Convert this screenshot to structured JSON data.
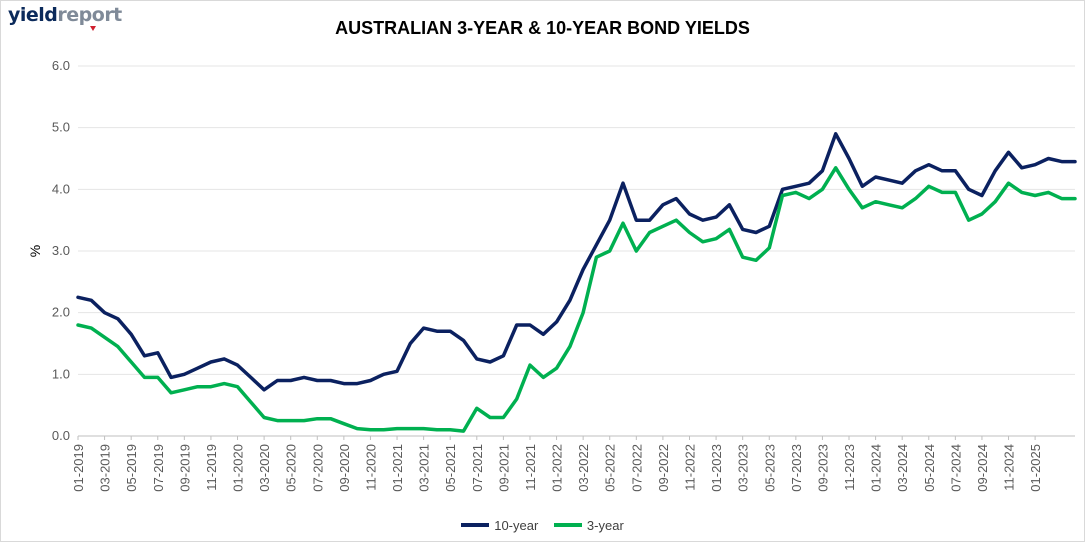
{
  "header": {
    "logo_part1": "yield",
    "logo_part2": "report"
  },
  "chart_data": {
    "type": "line",
    "title": "AUSTRALIAN 3-YEAR & 10-YEAR BOND YIELDS",
    "xlabel": "",
    "ylabel": "%",
    "ylim": [
      0,
      6
    ],
    "yticks": [
      "0.0",
      "1.0",
      "2.0",
      "3.0",
      "4.0",
      "5.0",
      "6.0"
    ],
    "xlim": [
      "2019-01",
      "2025-04"
    ],
    "xticks": [
      "01-2019",
      "03-2019",
      "05-2019",
      "07-2019",
      "09-2019",
      "11-2019",
      "01-2020",
      "03-2020",
      "05-2020",
      "07-2020",
      "09-2020",
      "11-2020",
      "01-2021",
      "03-2021",
      "05-2021",
      "07-2021",
      "09-2021",
      "11-2021",
      "01-2022",
      "03-2022",
      "05-2022",
      "07-2022",
      "09-2022",
      "11-2022",
      "01-2023",
      "03-2023",
      "05-2023",
      "07-2023",
      "09-2023",
      "11-2023",
      "01-2024",
      "03-2024",
      "05-2024",
      "07-2024",
      "09-2024",
      "11-2024",
      "01-2025"
    ],
    "grid": "horizontal",
    "legend_position": "bottom",
    "series": [
      {
        "name": "10-year",
        "color": "#0b2160",
        "x": [
          "2019-01",
          "2019-02",
          "2019-03",
          "2019-04",
          "2019-05",
          "2019-06",
          "2019-07",
          "2019-08",
          "2019-09",
          "2019-10",
          "2019-11",
          "2019-12",
          "2020-01",
          "2020-02",
          "2020-03",
          "2020-04",
          "2020-05",
          "2020-06",
          "2020-07",
          "2020-08",
          "2020-09",
          "2020-10",
          "2020-11",
          "2020-12",
          "2021-01",
          "2021-02",
          "2021-03",
          "2021-04",
          "2021-05",
          "2021-06",
          "2021-07",
          "2021-08",
          "2021-09",
          "2021-10",
          "2021-11",
          "2021-12",
          "2022-01",
          "2022-02",
          "2022-03",
          "2022-04",
          "2022-05",
          "2022-06",
          "2022-07",
          "2022-08",
          "2022-09",
          "2022-10",
          "2022-11",
          "2022-12",
          "2023-01",
          "2023-02",
          "2023-03",
          "2023-04",
          "2023-05",
          "2023-06",
          "2023-07",
          "2023-08",
          "2023-09",
          "2023-10",
          "2023-11",
          "2023-12",
          "2024-01",
          "2024-02",
          "2024-03",
          "2024-04",
          "2024-05",
          "2024-06",
          "2024-07",
          "2024-08",
          "2024-09",
          "2024-10",
          "2024-11",
          "2024-12",
          "2025-01",
          "2025-02",
          "2025-03",
          "2025-04"
        ],
        "values": [
          2.25,
          2.2,
          2.0,
          1.9,
          1.65,
          1.3,
          1.35,
          0.95,
          1.0,
          1.1,
          1.2,
          1.25,
          1.15,
          0.95,
          0.75,
          0.9,
          0.9,
          0.95,
          0.9,
          0.9,
          0.85,
          0.85,
          0.9,
          1.0,
          1.05,
          1.5,
          1.75,
          1.7,
          1.7,
          1.55,
          1.25,
          1.2,
          1.3,
          1.8,
          1.8,
          1.65,
          1.85,
          2.2,
          2.7,
          3.1,
          3.5,
          4.1,
          3.5,
          3.5,
          3.75,
          3.85,
          3.6,
          3.5,
          3.55,
          3.75,
          3.35,
          3.3,
          3.4,
          4.0,
          4.05,
          4.1,
          4.3,
          4.9,
          4.5,
          4.05,
          4.2,
          4.15,
          4.1,
          4.3,
          4.4,
          4.3,
          4.3,
          4.0,
          3.9,
          4.3,
          4.6,
          4.35,
          4.4,
          4.5,
          4.45,
          4.45
        ]
      },
      {
        "name": "3-year",
        "color": "#00b050",
        "x": [
          "2019-01",
          "2019-02",
          "2019-03",
          "2019-04",
          "2019-05",
          "2019-06",
          "2019-07",
          "2019-08",
          "2019-09",
          "2019-10",
          "2019-11",
          "2019-12",
          "2020-01",
          "2020-02",
          "2020-03",
          "2020-04",
          "2020-05",
          "2020-06",
          "2020-07",
          "2020-08",
          "2020-09",
          "2020-10",
          "2020-11",
          "2020-12",
          "2021-01",
          "2021-02",
          "2021-03",
          "2021-04",
          "2021-05",
          "2021-06",
          "2021-07",
          "2021-08",
          "2021-09",
          "2021-10",
          "2021-11",
          "2021-12",
          "2022-01",
          "2022-02",
          "2022-03",
          "2022-04",
          "2022-05",
          "2022-06",
          "2022-07",
          "2022-08",
          "2022-09",
          "2022-10",
          "2022-11",
          "2022-12",
          "2023-01",
          "2023-02",
          "2023-03",
          "2023-04",
          "2023-05",
          "2023-06",
          "2023-07",
          "2023-08",
          "2023-09",
          "2023-10",
          "2023-11",
          "2023-12",
          "2024-01",
          "2024-02",
          "2024-03",
          "2024-04",
          "2024-05",
          "2024-06",
          "2024-07",
          "2024-08",
          "2024-09",
          "2024-10",
          "2024-11",
          "2024-12",
          "2025-01",
          "2025-02",
          "2025-03",
          "2025-04"
        ],
        "values": [
          1.8,
          1.75,
          1.6,
          1.45,
          1.2,
          0.95,
          0.95,
          0.7,
          0.75,
          0.8,
          0.8,
          0.85,
          0.8,
          0.55,
          0.3,
          0.25,
          0.25,
          0.25,
          0.28,
          0.28,
          0.2,
          0.12,
          0.1,
          0.1,
          0.12,
          0.12,
          0.12,
          0.1,
          0.1,
          0.08,
          0.45,
          0.3,
          0.3,
          0.6,
          1.15,
          0.95,
          1.1,
          1.45,
          2.0,
          2.9,
          3.0,
          3.45,
          3.0,
          3.3,
          3.4,
          3.5,
          3.3,
          3.15,
          3.2,
          3.35,
          2.9,
          2.85,
          3.05,
          3.9,
          3.95,
          3.85,
          4.0,
          4.35,
          4.0,
          3.7,
          3.8,
          3.75,
          3.7,
          3.85,
          4.05,
          3.95,
          3.95,
          3.5,
          3.6,
          3.8,
          4.1,
          3.95,
          3.9,
          3.95,
          3.85,
          3.85
        ]
      }
    ]
  }
}
